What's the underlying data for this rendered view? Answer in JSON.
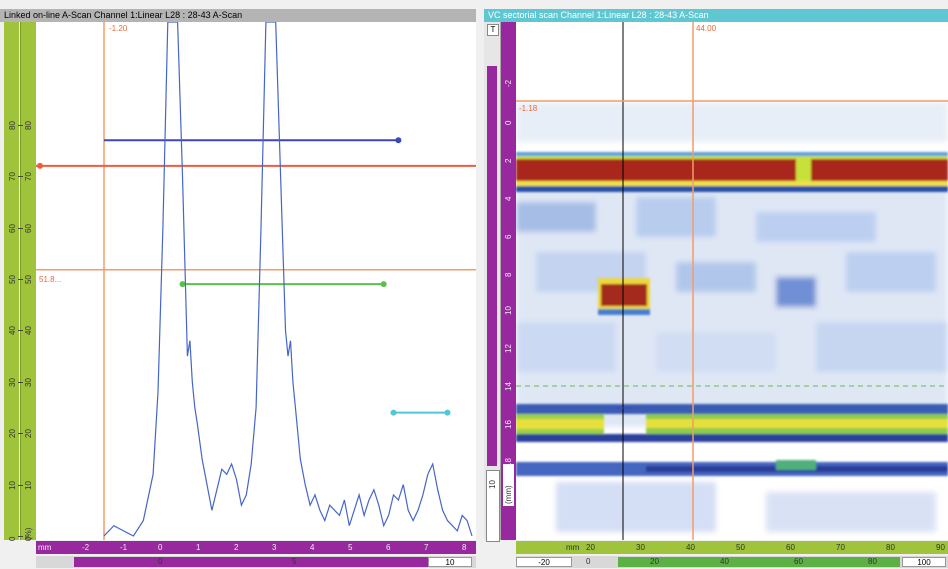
{
  "ascan": {
    "title": "Linked on-line A-Scan Channel 1:Linear  L28 : 28-43 A-Scan",
    "cursor_top_label": "-1.20",
    "cursor_gate_label": "51.8...",
    "y_ticks": [
      "0",
      "10",
      "20",
      "30",
      "40",
      "50",
      "60",
      "70",
      "80"
    ],
    "y_axis_label": "(%)",
    "x_unit": "mm",
    "x_ticks": [
      "-2",
      "-1",
      "0",
      "1",
      "2",
      "3",
      "4",
      "5",
      "6",
      "7",
      "8"
    ],
    "scroll_labels": [
      "0",
      "5",
      "10"
    ],
    "waveform": [
      [
        0,
        0
      ],
      [
        0.2,
        2
      ],
      [
        0.4,
        1
      ],
      [
        0.6,
        0
      ],
      [
        0.8,
        3
      ],
      [
        1,
        12
      ],
      [
        1.1,
        28
      ],
      [
        1.2,
        60
      ],
      [
        1.3,
        100
      ],
      [
        1.5,
        100
      ],
      [
        1.6,
        70
      ],
      [
        1.7,
        35
      ],
      [
        1.75,
        38
      ],
      [
        1.8,
        30
      ],
      [
        1.85,
        25
      ],
      [
        1.9,
        22
      ],
      [
        2,
        15
      ],
      [
        2.1,
        10
      ],
      [
        2.2,
        5
      ],
      [
        2.3,
        9
      ],
      [
        2.4,
        13
      ],
      [
        2.5,
        12
      ],
      [
        2.6,
        14
      ],
      [
        2.7,
        11
      ],
      [
        2.8,
        6
      ],
      [
        2.9,
        8
      ],
      [
        3,
        14
      ],
      [
        3.1,
        25
      ],
      [
        3.2,
        60
      ],
      [
        3.3,
        100
      ],
      [
        3.5,
        100
      ],
      [
        3.6,
        70
      ],
      [
        3.7,
        40
      ],
      [
        3.75,
        35
      ],
      [
        3.8,
        38
      ],
      [
        3.85,
        30
      ],
      [
        3.9,
        25
      ],
      [
        4,
        15
      ],
      [
        4.1,
        10
      ],
      [
        4.2,
        6
      ],
      [
        4.3,
        8
      ],
      [
        4.4,
        5
      ],
      [
        4.5,
        3
      ],
      [
        4.6,
        6
      ],
      [
        4.7,
        5
      ],
      [
        4.8,
        4
      ],
      [
        4.9,
        7
      ],
      [
        5,
        2
      ],
      [
        5.1,
        5
      ],
      [
        5.2,
        8
      ],
      [
        5.3,
        4
      ],
      [
        5.4,
        7
      ],
      [
        5.5,
        9
      ],
      [
        5.6,
        6
      ],
      [
        5.7,
        2
      ],
      [
        5.8,
        4
      ],
      [
        5.9,
        8
      ],
      [
        6,
        7
      ],
      [
        6.1,
        10
      ],
      [
        6.2,
        5
      ],
      [
        6.3,
        3
      ],
      [
        6.4,
        5
      ],
      [
        6.5,
        8
      ],
      [
        6.6,
        12
      ],
      [
        6.7,
        14
      ],
      [
        6.8,
        9
      ],
      [
        6.9,
        5
      ],
      [
        7,
        3
      ],
      [
        7.1,
        2
      ],
      [
        7.2,
        1
      ],
      [
        7.3,
        4
      ],
      [
        7.4,
        3
      ],
      [
        7.5,
        0
      ]
    ],
    "gates": {
      "blue": {
        "start": 0.0,
        "end": 6.0,
        "level": 77,
        "color": "#3d47b8"
      },
      "red": {
        "start": 0.0,
        "end": 7.5,
        "level": 72,
        "color": "#f25c3c"
      },
      "green": {
        "start": 1.6,
        "end": 5.7,
        "level": 49,
        "color": "#5cc04b"
      },
      "cyan": {
        "start": 5.9,
        "end": 7.0,
        "level": 24,
        "color": "#4ec8d8"
      }
    }
  },
  "sscan": {
    "title": "VC sectorial scan Channel 1:Linear  L28 : 28-43 A-Scan",
    "top_badge": "T",
    "cursor_top_label": "44.00",
    "cursor_left_label": "-1.18",
    "depth_ticks": [
      "-2",
      "0",
      "2",
      "4",
      "6",
      "8",
      "10",
      "12",
      "14",
      "16",
      "18"
    ],
    "depth_unit_box": "(mm)",
    "left_scale_label": "10",
    "x_unit": "mm",
    "x_ticks": [
      "20",
      "30",
      "40",
      "50",
      "60",
      "70",
      "80",
      "90"
    ],
    "scroll_labels": [
      "-20",
      "0",
      "20",
      "40",
      "60",
      "80",
      "100"
    ]
  },
  "colors": {
    "ascan_bg": "#ffffff",
    "ruler_green": "#9fc33a",
    "ruler_purple": "#98289e",
    "cursor_orange": "#f39c6a",
    "waveform": "#4566c8"
  }
}
